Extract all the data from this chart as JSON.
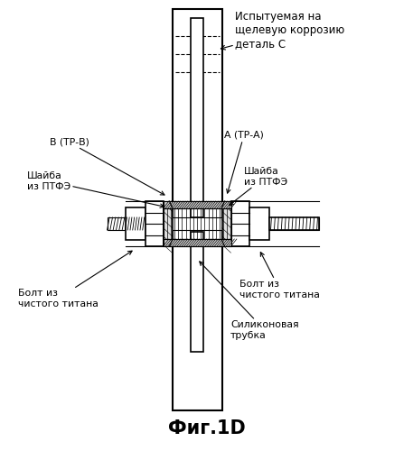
{
  "title": "Фиг.1D",
  "bg_color": "#ffffff",
  "line_color": "#000000",
  "labels": {
    "top_right": "Испытуемая на\nщелевую коррозию\nдеталь С",
    "label_A": "А (ТР-А)",
    "label_B": "В (ТР-В)",
    "washer_left": "Шайба\nиз ПТФЭ",
    "washer_right": "Шайба\nиз ПТФЭ",
    "bolt_left": "Болт из\nчистого титана",
    "bolt_right": "Болт из\nчистого титана",
    "silicone": "Силиконовая\nтрубка"
  },
  "fig_width": 4.57,
  "fig_height": 5.0,
  "dpi": 100
}
